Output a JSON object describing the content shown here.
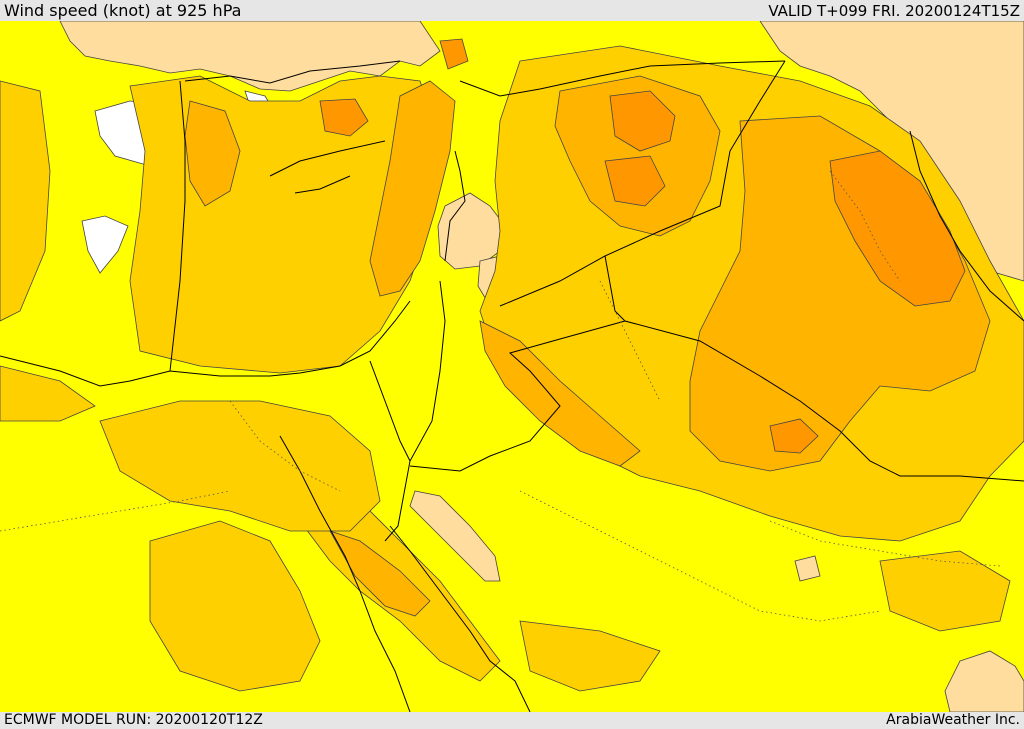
{
  "header": {
    "title": "Wind speed (knot) at 925 hPa",
    "valid": "VALID T+099 FRI. 20200124T15Z"
  },
  "footer": {
    "run": "ECMWF MODEL RUN: 20200120T12Z",
    "credit": "ArabiaWeather Inc."
  },
  "colors": {
    "speed_level_1": "#ffdd9e",
    "speed_level_2": "#ffff00",
    "speed_level_3": "#ffd000",
    "speed_level_4": "#ffb400",
    "speed_level_5": "#ff9800",
    "calm": "#ffffff",
    "contour": "#444444",
    "border": "#000000"
  }
}
